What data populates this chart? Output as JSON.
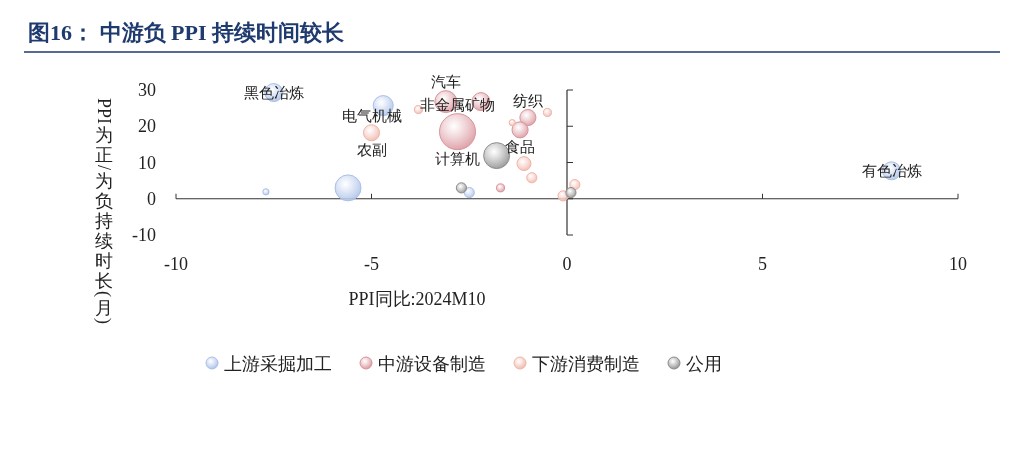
{
  "chart_data": {
    "type": "bubble",
    "title": "图16：  中游负 PPI 持续时间较长",
    "xlabel": "PPI同比:2024M10",
    "ylabel": "PPI为正/为负持续时长(月)",
    "xlim": [
      -10,
      10
    ],
    "xticks": [
      -10,
      -5,
      0,
      5,
      10
    ],
    "ylim": [
      -10,
      30
    ],
    "yticks": [
      -10,
      0,
      10,
      20,
      30
    ],
    "legend": "bottom",
    "series": [
      {
        "name": "上游采掘加工",
        "color": "#a9bfe8",
        "x": [
          -7.5,
          -4.7,
          -7.7,
          -5.6,
          -2.5,
          8.3
        ],
        "values": [
          29.3,
          25.7,
          1.9,
          3.0,
          1.7,
          7.7
        ],
        "sizes": [
          0.25,
          0.31,
          0.03,
          0.52,
          0.08,
          0.25
        ]
      },
      {
        "name": "中游设备制造",
        "color": "#d9939b",
        "x": [
          -3.1,
          -2.2,
          -2.8,
          -1.0,
          -1.2,
          -1.7
        ],
        "values": [
          26.8,
          26.8,
          18.5,
          22.4,
          19.0,
          3.0
        ],
        "sizes": [
          0.37,
          0.25,
          1,
          0.2,
          0.2,
          0.05
        ]
      },
      {
        "name": "下游消费制造",
        "color": "#f0b4a8",
        "x": [
          -5.0,
          -3.8,
          -0.5,
          -1.1,
          -0.9,
          0.2,
          -0.1,
          -1.4
        ],
        "values": [
          18.2,
          24.6,
          23.8,
          9.7,
          5.8,
          3.9,
          0.8,
          21.0
        ],
        "sizes": [
          0.2,
          0.05,
          0.05,
          0.15,
          0.08,
          0.08,
          0.08,
          0.03
        ]
      },
      {
        "name": "公用",
        "color": "#8c8c8c",
        "x": [
          -1.8,
          -2.7,
          0.1
        ],
        "values": [
          11.9,
          3.0,
          1.7
        ],
        "sizes": [
          0.52,
          0.08,
          0.08
        ]
      }
    ],
    "annotations": [
      {
        "text": "黑色冶炼",
        "x": -7.5,
        "y": 29.3
      },
      {
        "text": "有色冶炼",
        "x": 8.3,
        "y": 7.7
      },
      {
        "text": "汽车",
        "x": -3.1,
        "y": 26.8
      },
      {
        "text": "非金属矿物",
        "x": -2.8,
        "y": 18.5
      },
      {
        "text": "纺织",
        "x": -1.0,
        "y": 22.4
      },
      {
        "text": "电气机械",
        "x": -5.0,
        "y": 18.2
      },
      {
        "text": "计算机",
        "x": -2.8,
        "y": 18.5
      },
      {
        "text": "食品",
        "x": -1.2,
        "y": 19.0
      },
      {
        "text": "农副",
        "x": -5.0,
        "y": 18.2
      }
    ]
  }
}
